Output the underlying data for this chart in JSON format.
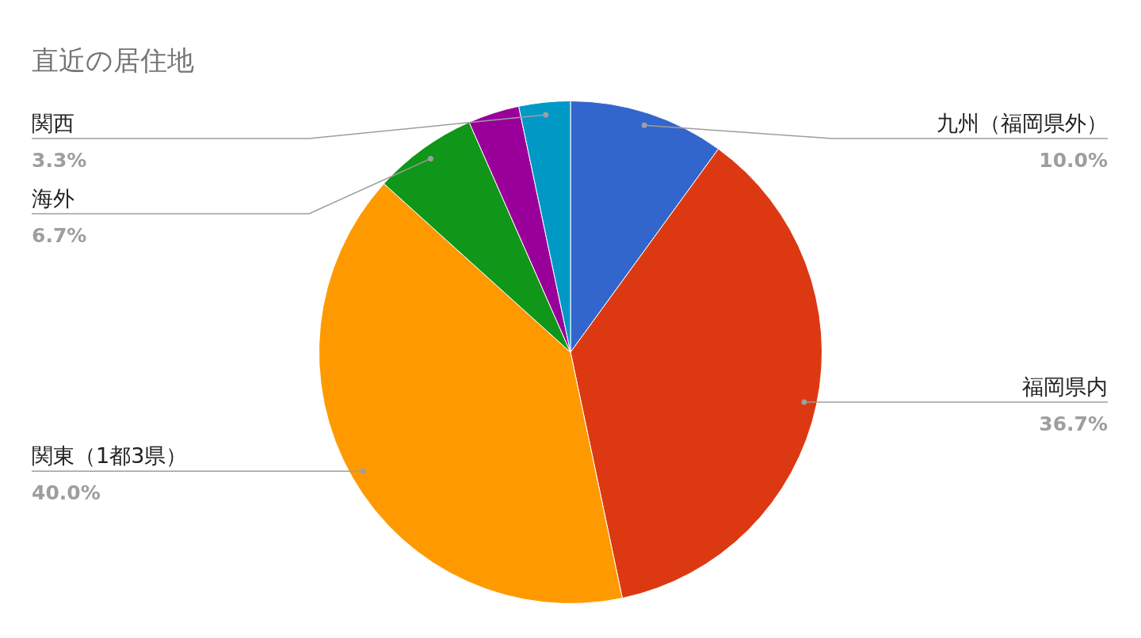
{
  "chart_data": {
    "type": "pie",
    "title": "直近の居住地",
    "categories": [
      "九州（福岡県外）",
      "福岡県内",
      "関東（1都3県）",
      "海外",
      null,
      "関西"
    ],
    "values": [
      10.0,
      36.7,
      40.0,
      6.7,
      3.3,
      3.3
    ],
    "colors": [
      "#3366cc",
      "#dc3912",
      "#ff9900",
      "#109618",
      "#990099",
      "#0099c6"
    ],
    "value_labels": [
      "10.0%",
      "36.7%",
      "40.0%",
      "6.7%",
      null,
      "3.3%"
    ],
    "legend": false
  }
}
